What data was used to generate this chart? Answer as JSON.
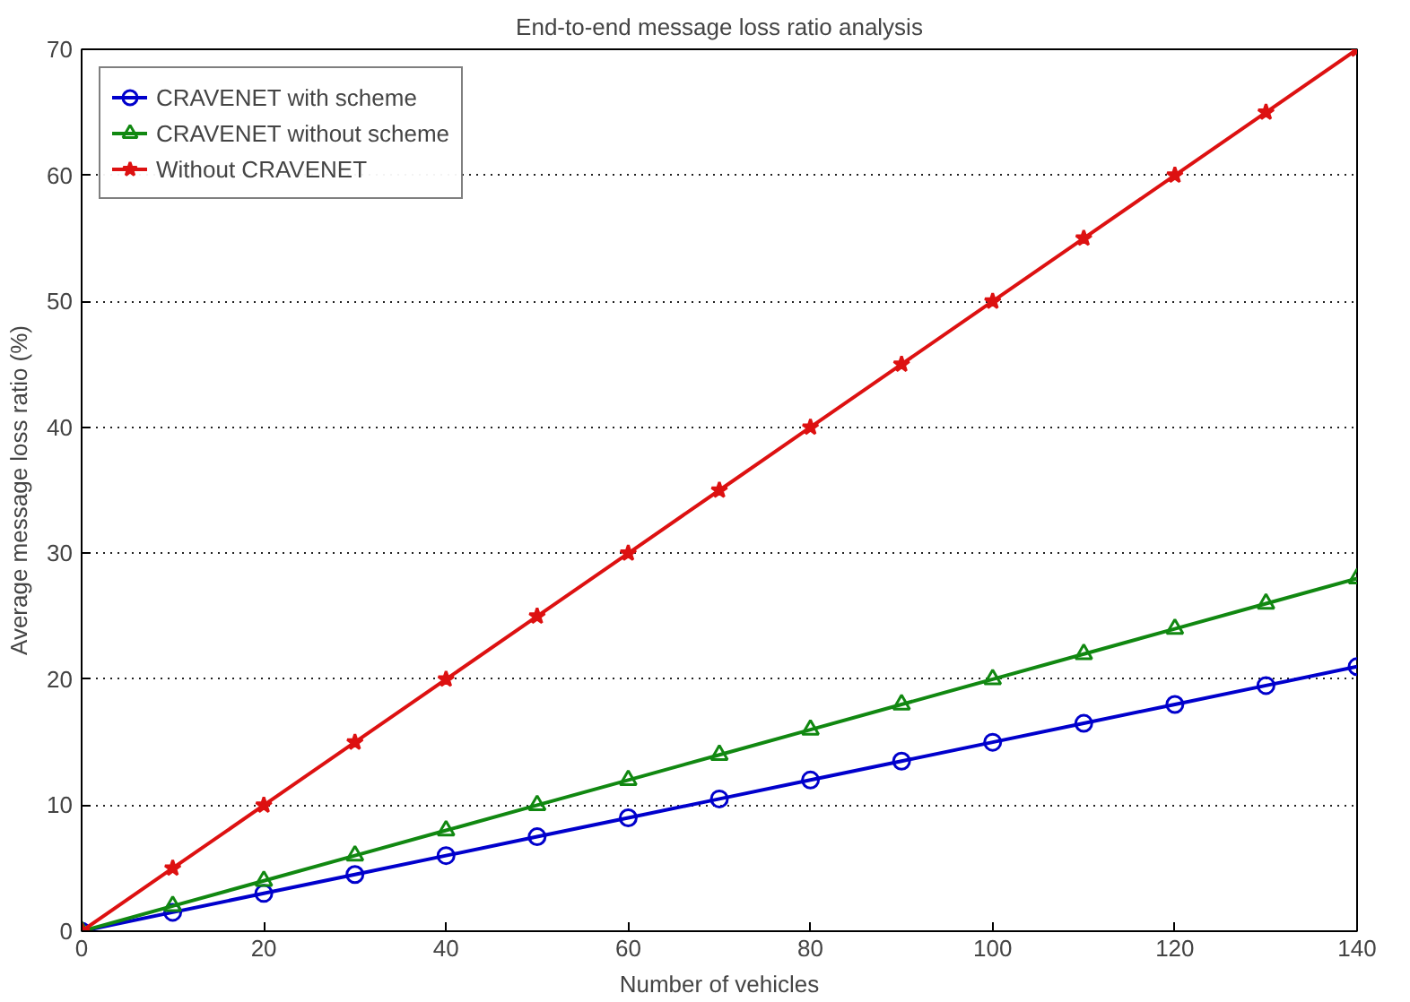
{
  "chart_data": {
    "type": "line",
    "title": "End-to-end message loss ratio analysis",
    "xlabel": "Number of vehicles",
    "ylabel": "Average message loss ratio (%)",
    "x": [
      0,
      10,
      20,
      30,
      40,
      50,
      60,
      70,
      80,
      90,
      100,
      110,
      120,
      130,
      140
    ],
    "series": [
      {
        "name": "CRAVENET with scheme",
        "color": "#0000cc",
        "marker": "circle",
        "values": [
          0,
          1.5,
          3,
          4.5,
          6,
          7.5,
          9,
          10.5,
          12,
          13.5,
          15,
          16.5,
          18,
          19.5,
          21
        ]
      },
      {
        "name": "CRAVENET without scheme",
        "color": "#118811",
        "marker": "triangle",
        "values": [
          0,
          2,
          4,
          6,
          8,
          10,
          12,
          14,
          16,
          18,
          20,
          22,
          24,
          26,
          28
        ]
      },
      {
        "name": "Without CRAVENET",
        "color": "#dd1111",
        "marker": "star",
        "values": [
          0,
          5,
          10,
          15,
          20,
          25,
          30,
          35,
          40,
          45,
          50,
          55,
          60,
          65,
          70
        ]
      }
    ],
    "xlim": [
      0,
      140
    ],
    "ylim": [
      0,
      70
    ],
    "xticks": [
      0,
      20,
      40,
      60,
      80,
      100,
      120,
      140
    ],
    "yticks": [
      0,
      10,
      20,
      30,
      40,
      50,
      60,
      70
    ],
    "grid": "y",
    "legend": "top left",
    "line_style": "solid"
  }
}
